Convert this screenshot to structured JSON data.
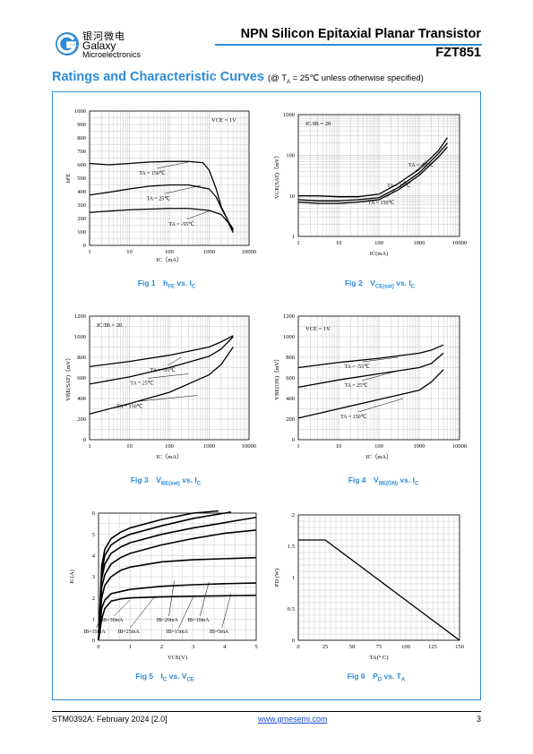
{
  "header": {
    "logo_cn": "银河微电",
    "logo_en1": "Galaxy",
    "logo_en2": "Microelectronics",
    "doc_title": "NPN Silicon Epitaxial Planar Transistor",
    "part_no": "FZT851"
  },
  "section": {
    "title": "Ratings and Characteristic Curves",
    "note": "(@ T",
    "note_sub": "A",
    "note_rest": " = 25℃ unless otherwise specified)"
  },
  "footer": {
    "doc_id": "STM0392A: February 2024 [2.0]",
    "website": "www.gmesemi.com",
    "page": "3"
  },
  "captions": [
    {
      "fig": "Fig 1",
      "main": "h",
      "sub": "FE",
      "tail": " vs. I",
      "tail_sub": "C"
    },
    {
      "fig": "Fig 2",
      "main": "V",
      "sub": "CE(sat)",
      "tail": " vs. I",
      "tail_sub": "C"
    },
    {
      "fig": "Fig 3",
      "main": "V",
      "sub": "BE(sat)",
      "tail": " vs. I",
      "tail_sub": "C"
    },
    {
      "fig": "Fig 4",
      "main": "V",
      "sub": "BE(ON)",
      "tail": " vs. I",
      "tail_sub": "C"
    },
    {
      "fig": "Fig 5",
      "main": "I",
      "sub": "C",
      "tail": " vs. V",
      "tail_sub": "CE"
    },
    {
      "fig": "Fig 6",
      "main": "P",
      "sub": "D",
      "tail": " vs. T",
      "tail_sub": "A"
    }
  ],
  "chart_data": [
    {
      "id": "fig1",
      "type": "line",
      "xscale": "log",
      "xlim": [
        1,
        10000
      ],
      "xticks": [
        "1",
        "10",
        "100",
        "1000",
        "10000"
      ],
      "ylim": [
        0,
        1000
      ],
      "yticks": [
        "0",
        "100",
        "200",
        "300",
        "400",
        "500",
        "600",
        "700",
        "800",
        "900",
        "1000"
      ],
      "ylabel": "hFE",
      "xlabel": "IC（mA）",
      "condition": "VCE = 1V",
      "series": [
        {
          "name": "TA = 150℃",
          "x": [
            1,
            3,
            10,
            30,
            100,
            300,
            700,
            1000,
            1500,
            2000,
            3000,
            4000
          ],
          "y": [
            610,
            600,
            610,
            620,
            625,
            625,
            615,
            560,
            420,
            290,
            180,
            110
          ]
        },
        {
          "name": "TA = 25℃",
          "x": [
            1,
            3,
            10,
            30,
            100,
            300,
            1000,
            1500,
            2000,
            3000,
            4000
          ],
          "y": [
            375,
            395,
            420,
            440,
            450,
            450,
            420,
            360,
            280,
            180,
            120
          ]
        },
        {
          "name": "TA = -55℃",
          "x": [
            1,
            3,
            10,
            30,
            100,
            300,
            1000,
            2000,
            3000,
            4000
          ],
          "y": [
            245,
            255,
            265,
            270,
            275,
            275,
            260,
            230,
            170,
            95
          ]
        }
      ]
    },
    {
      "id": "fig2",
      "type": "line",
      "xscale": "log",
      "xlim": [
        1,
        10000
      ],
      "xticks": [
        "1",
        "10",
        "100",
        "1000",
        "10000"
      ],
      "yscale": "log",
      "ylim": [
        1,
        1000
      ],
      "yticks": [
        "1",
        "10",
        "100",
        "1000"
      ],
      "ylabel": "VCE(SAT)（mV）",
      "xlabel": "IC(mA)",
      "condition": "IC/IB = 20",
      "series": [
        {
          "name": "TA = -55℃",
          "x": [
            1,
            3,
            10,
            30,
            100,
            300,
            1000,
            3000,
            5000
          ],
          "y": [
            10,
            10,
            9.5,
            9.5,
            11,
            20,
            45,
            130,
            270
          ]
        },
        {
          "name": "TA = 25℃",
          "x": [
            1,
            3,
            10,
            30,
            100,
            300,
            1000,
            3000,
            5000
          ],
          "y": [
            8,
            7.5,
            7.5,
            8,
            9,
            16,
            37,
            110,
            200
          ]
        },
        {
          "name": "TA = 150℃",
          "x": [
            1,
            3,
            10,
            30,
            100,
            300,
            1000,
            3000,
            5000
          ],
          "y": [
            7,
            6.5,
            6.5,
            7,
            8,
            14,
            32,
            90,
            160
          ]
        }
      ]
    },
    {
      "id": "fig3",
      "type": "line",
      "xscale": "log",
      "xlim": [
        1,
        10000
      ],
      "xticks": [
        "1",
        "10",
        "100",
        "1000",
        "10000"
      ],
      "ylim": [
        0,
        1200
      ],
      "yticks": [
        "0",
        "200",
        "400",
        "600",
        "800",
        "1000",
        "1200"
      ],
      "ylabel": "VBE(SAT)（mV）",
      "xlabel": "IC（mA）",
      "condition": "IC/IB = 20",
      "series": [
        {
          "name": "TA = -55℃",
          "x": [
            1,
            10,
            100,
            1000,
            2000,
            4000
          ],
          "y": [
            710,
            760,
            820,
            900,
            950,
            1010
          ]
        },
        {
          "name": "TA = 25℃",
          "x": [
            1,
            10,
            100,
            1000,
            2000,
            4000
          ],
          "y": [
            540,
            610,
            700,
            810,
            880,
            1000
          ]
        },
        {
          "name": "TA = 150℃",
          "x": [
            1,
            10,
            100,
            1000,
            2000,
            4000
          ],
          "y": [
            250,
            350,
            460,
            630,
            730,
            900
          ]
        }
      ]
    },
    {
      "id": "fig4",
      "type": "line",
      "xscale": "log",
      "xlim": [
        1,
        10000
      ],
      "xticks": [
        "1",
        "10",
        "100",
        "1000",
        "10000"
      ],
      "ylim": [
        0,
        1200
      ],
      "yticks": [
        "0",
        "200",
        "400",
        "600",
        "800",
        "1000",
        "1200"
      ],
      "ylabel": "VBE(ON)（mV）",
      "xlabel": "IC（mA）",
      "condition": "VCE = 1V",
      "series": [
        {
          "name": "TA = -55℃",
          "x": [
            1,
            10,
            100,
            1000,
            2000,
            4000
          ],
          "y": [
            700,
            750,
            790,
            840,
            870,
            920
          ]
        },
        {
          "name": "TA = 25℃",
          "x": [
            1,
            10,
            100,
            1000,
            2000,
            4000
          ],
          "y": [
            510,
            580,
            640,
            700,
            740,
            840
          ]
        },
        {
          "name": "TA = 150℃",
          "x": [
            1,
            10,
            100,
            1000,
            2000,
            4000
          ],
          "y": [
            210,
            300,
            390,
            480,
            560,
            680
          ]
        }
      ]
    },
    {
      "id": "fig5",
      "type": "line",
      "xlim": [
        0,
        5
      ],
      "xticks": [
        "0",
        "1",
        "2",
        "3",
        "4",
        "5"
      ],
      "ylim": [
        0,
        6
      ],
      "yticks": [
        "0",
        "1",
        "2",
        "3",
        "4",
        "5",
        "6"
      ],
      "ylabel": "IC(A)",
      "xlabel": "VCE(V)",
      "labels": [
        "IB=35mA",
        "IB=30mA",
        "IB=25mA",
        "IB=20mA",
        "IB=15mA",
        "IB=10mA",
        "IB=5mA"
      ],
      "series": [
        {
          "name": "IB=35mA",
          "x": [
            0,
            0.1,
            0.2,
            0.4,
            0.7,
            1,
            2,
            3,
            3.8
          ],
          "y": [
            0,
            3.5,
            4.3,
            4.8,
            5.1,
            5.3,
            5.7,
            6.0,
            6.1
          ]
        },
        {
          "name": "IB=30mA",
          "x": [
            0,
            0.1,
            0.2,
            0.4,
            0.7,
            1,
            2,
            3,
            4,
            4.2
          ],
          "y": [
            0,
            3.2,
            4.0,
            4.5,
            4.8,
            5.0,
            5.4,
            5.75,
            6.0,
            6.05
          ]
        },
        {
          "name": "IB=25mA",
          "x": [
            0,
            0.1,
            0.2,
            0.4,
            0.7,
            1,
            2,
            3,
            4,
            5
          ],
          "y": [
            0,
            2.9,
            3.6,
            4.1,
            4.4,
            4.6,
            5.0,
            5.3,
            5.55,
            5.8
          ]
        },
        {
          "name": "IB=20mA",
          "x": [
            0,
            0.1,
            0.2,
            0.4,
            0.7,
            1,
            2,
            3,
            4,
            5
          ],
          "y": [
            0,
            2.5,
            3.1,
            3.6,
            3.9,
            4.1,
            4.5,
            4.8,
            5.05,
            5.2
          ]
        },
        {
          "name": "IB=15mA",
          "x": [
            0,
            0.1,
            0.2,
            0.4,
            0.7,
            1,
            2,
            3,
            4,
            5
          ],
          "y": [
            0,
            2.0,
            2.6,
            3.0,
            3.3,
            3.45,
            3.7,
            3.8,
            3.85,
            3.9
          ]
        },
        {
          "name": "IB=10mA",
          "x": [
            0,
            0.1,
            0.2,
            0.4,
            0.7,
            1,
            2,
            3,
            4,
            5
          ],
          "y": [
            0,
            1.5,
            1.9,
            2.2,
            2.3,
            2.4,
            2.55,
            2.62,
            2.67,
            2.7
          ]
        },
        {
          "name": "IB=5mA",
          "x": [
            0,
            0.1,
            0.2,
            0.4,
            0.7,
            1,
            2,
            3,
            4,
            5
          ],
          "y": [
            0,
            1.0,
            1.5,
            1.85,
            1.95,
            2.0,
            2.05,
            2.08,
            2.1,
            2.12
          ]
        }
      ]
    },
    {
      "id": "fig6",
      "type": "line",
      "xlim": [
        0,
        150
      ],
      "xticks": [
        "0",
        "25",
        "50",
        "75",
        "100",
        "125",
        "150"
      ],
      "ylim": [
        0,
        2
      ],
      "yticks": [
        "0",
        "0.5",
        "1",
        "1.5",
        "2"
      ],
      "ylabel": "PD (W)",
      "xlabel": "TA(° C)",
      "series": [
        {
          "name": "",
          "x": [
            0,
            25,
            150
          ],
          "y": [
            1.6,
            1.6,
            0
          ]
        }
      ]
    }
  ],
  "colors": {
    "accent": "#2e8bd6",
    "link": "#1a4fd6",
    "curve": "#000000",
    "grid": "#c8c8c8"
  },
  "icons": [
    "galaxy-logo-icon"
  ]
}
